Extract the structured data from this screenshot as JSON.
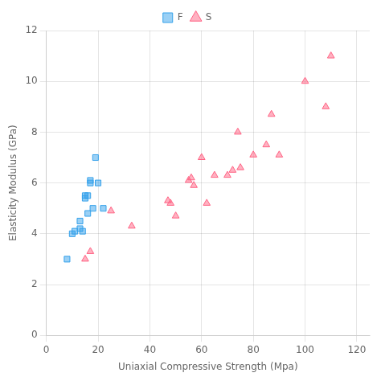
{
  "chart_data": {
    "type": "scatter",
    "xlabel": "Uniaxial Compressive Strength (Mpa)",
    "ylabel": "Elasticity Modulus (GPa)",
    "series": [
      {
        "name": "F",
        "marker": "square",
        "x": [
          8,
          10,
          11,
          13,
          13,
          14,
          15,
          15,
          16,
          16,
          17,
          17,
          18,
          19,
          20,
          22
        ],
        "values": [
          3.0,
          4.0,
          4.1,
          4.5,
          4.2,
          4.1,
          5.5,
          5.4,
          5.5,
          4.8,
          6.0,
          6.1,
          5.0,
          7.0,
          6.0,
          5.0
        ]
      },
      {
        "name": "S",
        "marker": "triangle",
        "x": [
          15,
          17,
          25,
          33,
          47,
          48,
          50,
          55,
          56,
          57,
          60,
          62,
          65,
          70,
          72,
          74,
          75,
          80,
          85,
          87,
          90,
          100,
          108,
          110
        ],
        "values": [
          3.0,
          3.3,
          4.9,
          4.3,
          5.3,
          5.2,
          4.7,
          6.1,
          6.2,
          5.9,
          7.0,
          5.2,
          6.3,
          6.3,
          6.5,
          8.0,
          6.6,
          7.1,
          7.5,
          8.7,
          7.1,
          10.0,
          9.0,
          11.0
        ]
      }
    ],
    "xlim": [
      0,
      125
    ],
    "ylim": [
      0,
      12
    ],
    "xticks": [
      0,
      20,
      40,
      60,
      80,
      100,
      120
    ],
    "yticks": [
      0,
      2,
      4,
      6,
      8,
      10,
      12
    ],
    "grid": true,
    "legend": "top"
  }
}
